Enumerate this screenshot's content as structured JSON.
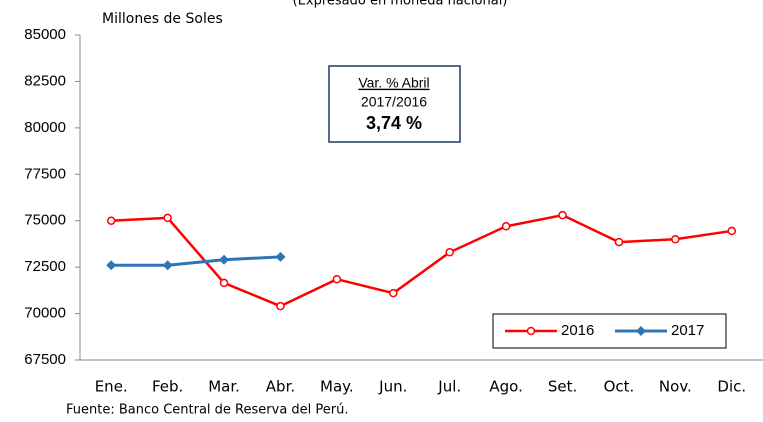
{
  "chart_data": {
    "type": "line",
    "subtitle": "(Expresado en moneda nacional)",
    "y_label": "Millones de Soles",
    "source": "Fuente: Banco Central de Reserva del Perú.",
    "annotation": {
      "title": "Var. % Abril",
      "period": "2017/2016",
      "value": "3,74 %"
    },
    "categories": [
      "Ene.",
      "Feb.",
      "Mar.",
      "Abr.",
      "May.",
      "Jun.",
      "Jul.",
      "Ago.",
      "Set.",
      "Oct.",
      "Nov.",
      "Dic."
    ],
    "series": [
      {
        "name": "2016",
        "color": "#ff0000",
        "marker": "circle",
        "values": [
          75000,
          75150,
          71650,
          70400,
          71850,
          71100,
          73300,
          74700,
          75300,
          73850,
          74000,
          74450
        ]
      },
      {
        "name": "2017",
        "color": "#2e75b6",
        "marker": "diamond",
        "values": [
          72600,
          72600,
          72900,
          73050,
          null,
          null,
          null,
          null,
          null,
          null,
          null,
          null
        ]
      }
    ],
    "ylim": [
      67500,
      85000
    ],
    "yticks": [
      67500,
      70000,
      72500,
      75000,
      77500,
      80000,
      82500,
      85000
    ],
    "legend": "lower right"
  }
}
